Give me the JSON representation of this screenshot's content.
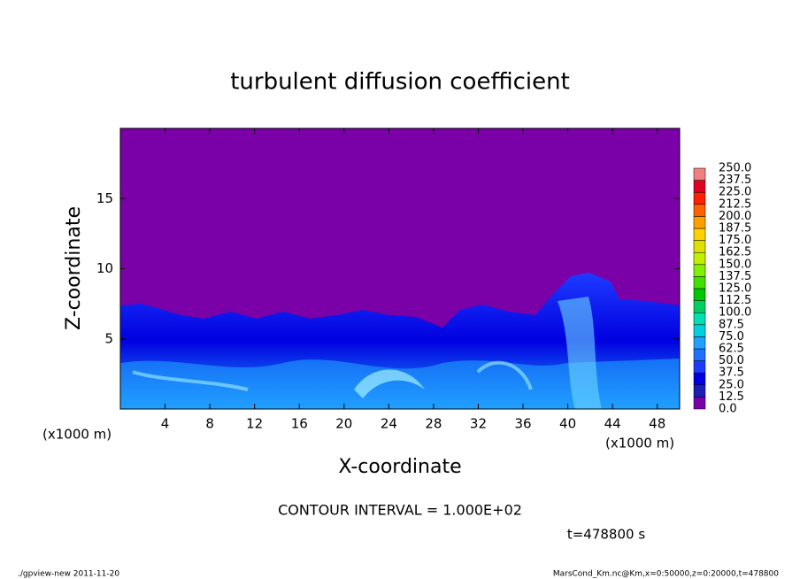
{
  "chart_data": {
    "type": "contour",
    "title": "turbulent diffusion coefficient",
    "xlabel": "X-coordinate",
    "ylabel": "Z-coordinate",
    "x_unit_labels": [
      "(x1000 m)",
      "(x1000 m)"
    ],
    "xlim": [
      0,
      50
    ],
    "xticks": [
      4,
      8,
      12,
      16,
      20,
      24,
      28,
      32,
      36,
      40,
      44,
      48
    ],
    "ylim": [
      0,
      20
    ],
    "yticks": [
      5,
      10,
      15
    ],
    "colorbar": {
      "levels": [
        {
          "value": 0,
          "label": "0.0"
        },
        {
          "value": 12.5,
          "label": "12.5"
        },
        {
          "value": 25,
          "label": "25.0"
        },
        {
          "value": 37.5,
          "label": "37.5"
        },
        {
          "value": 50,
          "label": "50.0"
        },
        {
          "value": 62.5,
          "label": "62.5"
        },
        {
          "value": 75,
          "label": "75.0"
        },
        {
          "value": 87.5,
          "label": "87.5"
        },
        {
          "value": 100,
          "label": "100.0"
        },
        {
          "value": 112.5,
          "label": "112.5"
        },
        {
          "value": 125,
          "label": "125.0"
        },
        {
          "value": 137.5,
          "label": "137.5"
        },
        {
          "value": 150,
          "label": "150.0"
        },
        {
          "value": 162.5,
          "label": "162.5"
        },
        {
          "value": 175,
          "label": "175.0"
        },
        {
          "value": 187.5,
          "label": "187.5"
        },
        {
          "value": 200,
          "label": "200.0"
        },
        {
          "value": 212.5,
          "label": "212.5"
        },
        {
          "value": 225,
          "label": "225.0"
        },
        {
          "value": 237.5,
          "label": "237.5"
        },
        {
          "value": 250,
          "label": "250.0"
        }
      ],
      "colors": [
        "#7a00a8",
        "#1e1eb4",
        "#0000e0",
        "#1e3cff",
        "#2070ff",
        "#20a0ff",
        "#00d0e0",
        "#00e0b0",
        "#00d060",
        "#00c800",
        "#40e000",
        "#80f000",
        "#c0f000",
        "#e0e000",
        "#ffd000",
        "#ffa000",
        "#ff6000",
        "#ff2000",
        "#e00020",
        "#f08080"
      ]
    },
    "contour_interval": "CONTOUR INTERVAL = 1.000E+02",
    "time_label": "t=478800 s",
    "footer_left": "./gpview-new  2011-11-20",
    "footer_right": "MarsCond_Km.nc@Km,x=0:50000,z=0:20000,t=478800"
  }
}
